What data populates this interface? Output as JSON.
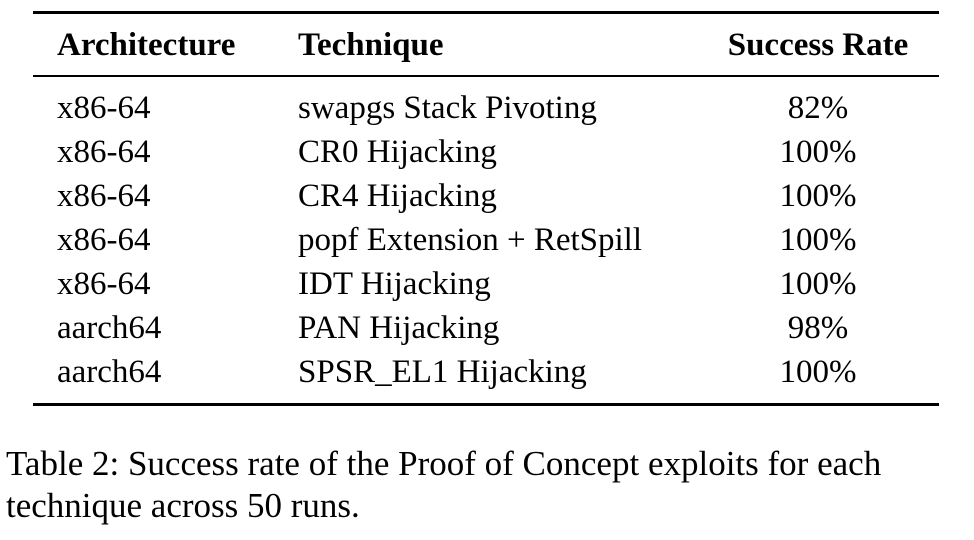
{
  "table": {
    "headers": {
      "architecture": "Architecture",
      "technique": "Technique",
      "success_rate": "Success Rate"
    },
    "rows": [
      {
        "architecture": "x86-64",
        "technique": "swapgs Stack Pivoting",
        "success_rate": "82%"
      },
      {
        "architecture": "x86-64",
        "technique": "CR0 Hijacking",
        "success_rate": "100%"
      },
      {
        "architecture": "x86-64",
        "technique": "CR4 Hijacking",
        "success_rate": "100%"
      },
      {
        "architecture": "x86-64",
        "technique": "popf Extension + RetSpill",
        "success_rate": "100%"
      },
      {
        "architecture": "x86-64",
        "technique": "IDT Hijacking",
        "success_rate": "100%"
      },
      {
        "architecture": "aarch64",
        "technique": "PAN Hijacking",
        "success_rate": "98%"
      },
      {
        "architecture": "aarch64",
        "technique": "SPSR_EL1 Hijacking",
        "success_rate": "100%"
      }
    ]
  },
  "caption": {
    "line1": "Table 2: Success rate of the Proof of Concept exploits for each",
    "line2": "technique across 50 runs."
  }
}
